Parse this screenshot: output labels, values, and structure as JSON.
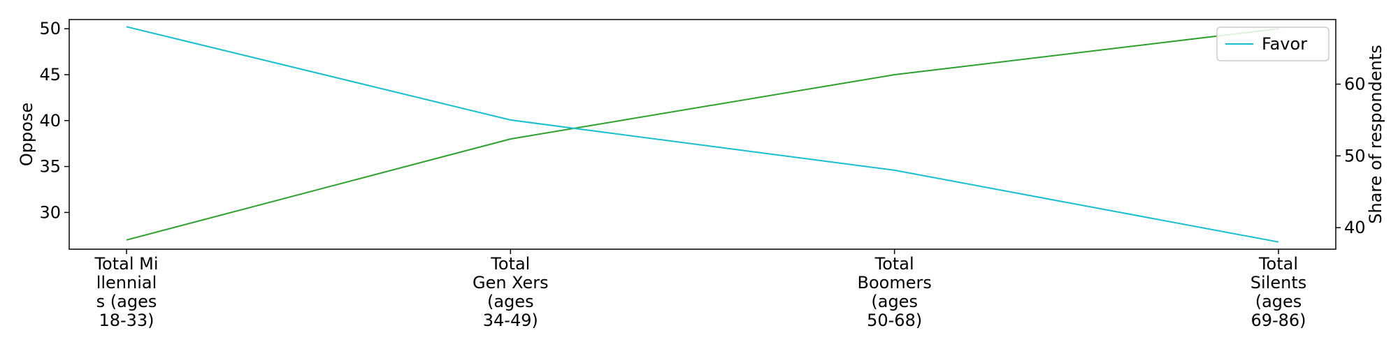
{
  "chart_data": {
    "type": "line",
    "categories": [
      [
        "Total Mi",
        "llennial",
        "s (ages",
        "18-33)"
      ],
      [
        "Total",
        "Gen Xers",
        "(ages",
        "34-49)"
      ],
      [
        "Total",
        "Boomers",
        "(ages",
        "50-68)"
      ],
      [
        "Total",
        "Silents",
        "(ages",
        "69-86)"
      ]
    ],
    "series": [
      {
        "name": "",
        "axis": "left",
        "color": "#2ca02c",
        "values": [
          27,
          38,
          45,
          50
        ]
      },
      {
        "name": "Favor",
        "axis": "right",
        "color": "#17becf",
        "values": [
          68,
          55,
          48,
          38
        ]
      }
    ],
    "ylabel_left": "Oppose",
    "ylabel_right": "Share of respondents",
    "ylim_left": [
      26,
      51
    ],
    "ylim_right": [
      37,
      69
    ],
    "yticks_left": [
      30,
      35,
      40,
      45,
      50
    ],
    "yticks_right": [
      40,
      50,
      60
    ],
    "grid": false,
    "legend": {
      "placement": "top-right",
      "entries": [
        "Favor"
      ]
    }
  }
}
